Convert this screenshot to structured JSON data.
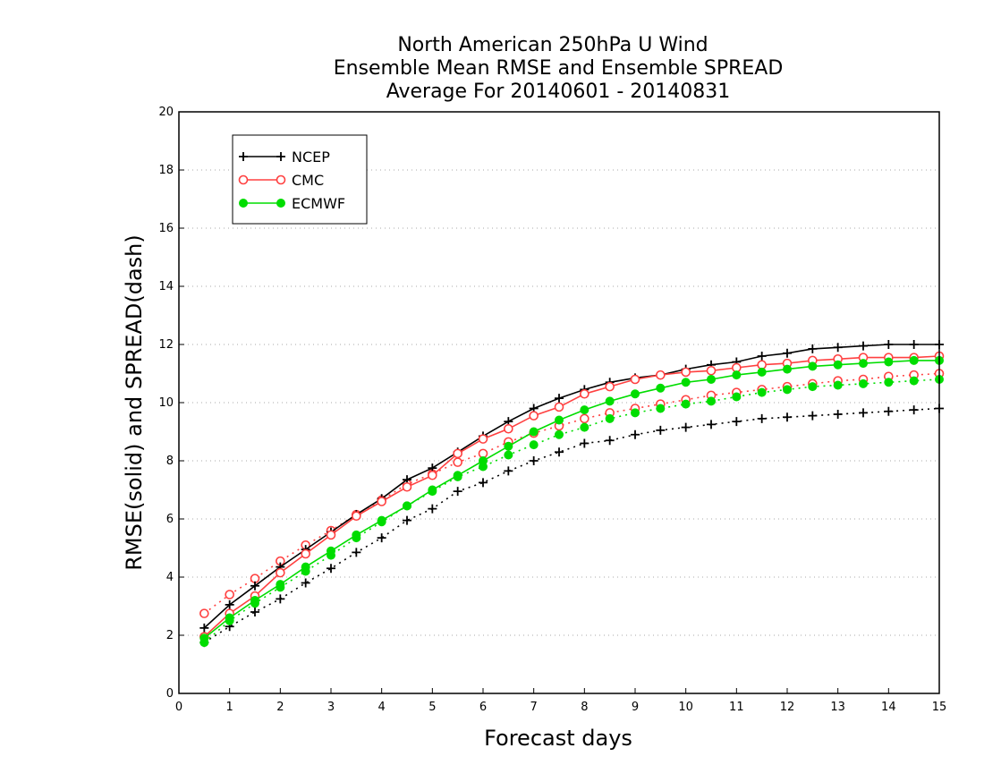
{
  "chart_data": {
    "type": "line",
    "title": [
      "North American 250hPa U Wind",
      "Ensemble Mean RMSE and Ensemble SPREAD",
      "Average For 20140601 - 20140831"
    ],
    "xlabel": "Forecast days",
    "ylabel": "RMSE(solid) and SPREAD(dash)",
    "xlim": [
      0,
      15
    ],
    "ylim": [
      0,
      20
    ],
    "xticks": [
      "0",
      "1",
      "2",
      "3",
      "4",
      "5",
      "6",
      "7",
      "8",
      "9",
      "10",
      "11",
      "12",
      "13",
      "14",
      "15"
    ],
    "yticks": [
      "0",
      "2",
      "4",
      "6",
      "8",
      "10",
      "12",
      "14",
      "16",
      "18",
      "20"
    ],
    "grid": "horizontal dotted",
    "legend_position": "top-left",
    "x": [
      0.5,
      1,
      1.5,
      2,
      2.5,
      3,
      3.5,
      4,
      4.5,
      5,
      5.5,
      6,
      6.5,
      7,
      7.5,
      8,
      8.5,
      9,
      9.5,
      10,
      10.5,
      11,
      11.5,
      12,
      12.5,
      13,
      13.5,
      14,
      14.5,
      15
    ],
    "series": [
      {
        "name": "NCEP",
        "metric": "RMSE",
        "line_style": "solid",
        "color": "#000000",
        "marker": "plus",
        "values": [
          2.25,
          3.05,
          3.7,
          4.35,
          4.95,
          5.55,
          6.15,
          6.7,
          7.35,
          7.75,
          8.3,
          8.85,
          9.35,
          9.8,
          10.15,
          10.45,
          10.7,
          10.85,
          10.95,
          11.15,
          11.3,
          11.4,
          11.6,
          11.7,
          11.85,
          11.9,
          11.95,
          12.0,
          12.0,
          12.0
        ]
      },
      {
        "name": "CMC",
        "metric": "RMSE",
        "line_style": "solid",
        "color": "#ff4040",
        "marker": "open-circle",
        "values": [
          1.95,
          2.75,
          3.35,
          4.15,
          4.8,
          5.45,
          6.1,
          6.6,
          7.1,
          7.5,
          8.25,
          8.75,
          9.1,
          9.55,
          9.85,
          10.3,
          10.55,
          10.8,
          10.95,
          11.05,
          11.1,
          11.2,
          11.3,
          11.35,
          11.45,
          11.5,
          11.55,
          11.55,
          11.55,
          11.6
        ]
      },
      {
        "name": "ECMWF",
        "metric": "RMSE",
        "line_style": "solid",
        "color": "#00dd00",
        "marker": "filled-circle",
        "values": [
          1.9,
          2.6,
          3.2,
          3.75,
          4.35,
          4.9,
          5.45,
          5.95,
          6.45,
          7.0,
          7.5,
          8.0,
          8.5,
          9.0,
          9.4,
          9.75,
          10.05,
          10.3,
          10.5,
          10.7,
          10.8,
          10.95,
          11.05,
          11.15,
          11.25,
          11.3,
          11.35,
          11.4,
          11.45,
          11.45
        ]
      },
      {
        "name": "NCEP",
        "metric": "SPREAD",
        "line_style": "dash",
        "color": "#000000",
        "marker": "plus",
        "values": [
          1.75,
          2.3,
          2.8,
          3.25,
          3.8,
          4.3,
          4.85,
          5.35,
          5.95,
          6.35,
          6.95,
          7.25,
          7.65,
          8.0,
          8.3,
          8.6,
          8.7,
          8.9,
          9.05,
          9.15,
          9.25,
          9.35,
          9.45,
          9.5,
          9.55,
          9.6,
          9.65,
          9.7,
          9.75,
          9.8
        ]
      },
      {
        "name": "CMC",
        "metric": "SPREAD",
        "line_style": "dash",
        "color": "#ff4040",
        "marker": "open-circle",
        "values": [
          2.75,
          3.4,
          3.95,
          4.55,
          5.1,
          5.6,
          6.15,
          6.65,
          7.2,
          7.55,
          7.95,
          8.25,
          8.65,
          8.95,
          9.2,
          9.45,
          9.65,
          9.8,
          9.95,
          10.1,
          10.25,
          10.35,
          10.45,
          10.55,
          10.65,
          10.75,
          10.8,
          10.9,
          10.95,
          11.0
        ]
      },
      {
        "name": "ECMWF",
        "metric": "SPREAD",
        "line_style": "dash",
        "color": "#00dd00",
        "marker": "filled-circle",
        "values": [
          1.75,
          2.5,
          3.1,
          3.65,
          4.2,
          4.75,
          5.35,
          5.9,
          6.45,
          6.95,
          7.45,
          7.8,
          8.2,
          8.55,
          8.9,
          9.15,
          9.45,
          9.65,
          9.8,
          9.95,
          10.05,
          10.2,
          10.35,
          10.45,
          10.55,
          10.6,
          10.65,
          10.7,
          10.75,
          10.8
        ]
      }
    ],
    "legend": [
      {
        "label": "NCEP",
        "color": "#000000",
        "marker": "plus"
      },
      {
        "label": "CMC",
        "color": "#ff4040",
        "marker": "open-circle"
      },
      {
        "label": "ECMWF",
        "color": "#00dd00",
        "marker": "filled-circle"
      }
    ]
  }
}
